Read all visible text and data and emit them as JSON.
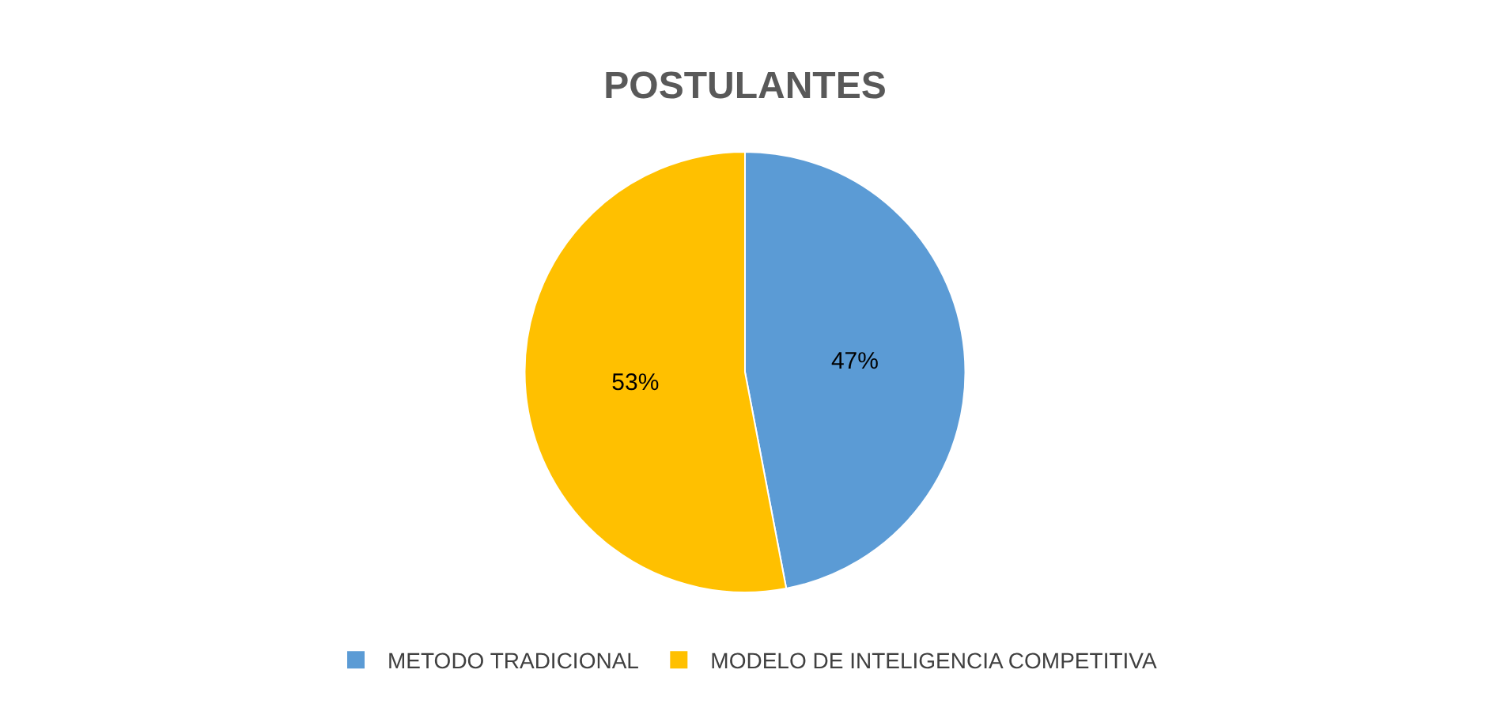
{
  "chart_data": {
    "type": "pie",
    "title": "POSTULANTES",
    "categories": [
      "METODO TRADICIONAL",
      "MODELO DE INTELIGENCIA COMPETITIVA"
    ],
    "values": [
      47,
      53
    ],
    "colors": [
      "#5b9bd5",
      "#ffc000"
    ],
    "value_labels": [
      "47%",
      "53%"
    ],
    "legend": "bottom"
  }
}
